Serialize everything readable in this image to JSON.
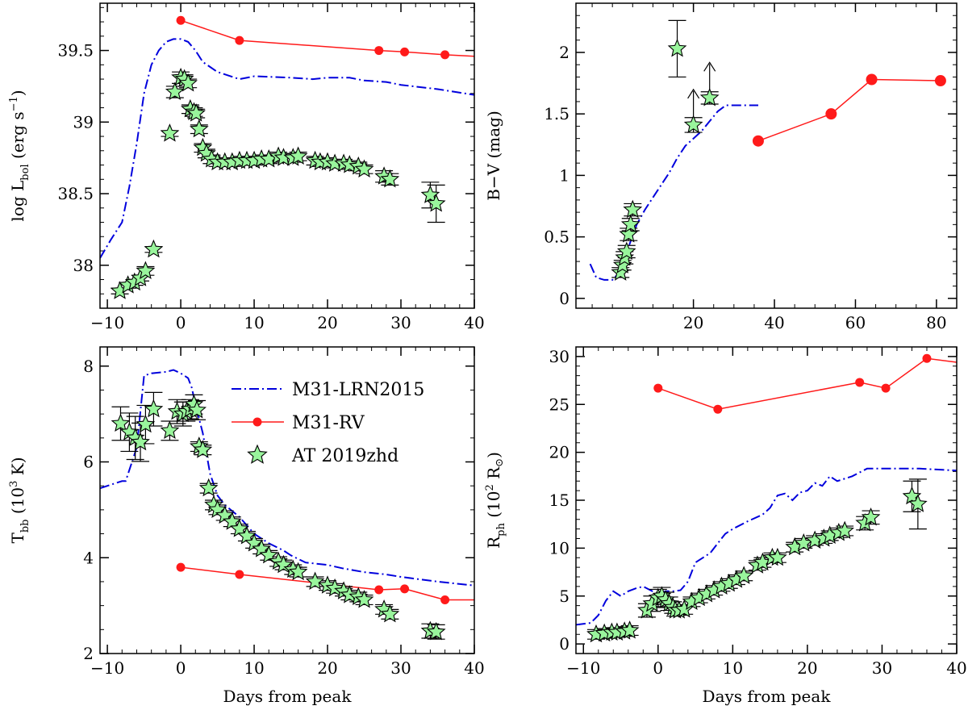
{
  "chart_data": [
    {
      "id": "lbol",
      "type": "scatter",
      "ylabel": {
        "main": "log L",
        "sub": "bol",
        "tail": " (erg s",
        "sup": "−1",
        "end": ")"
      },
      "xlim": [
        -11,
        40
      ],
      "ylim": [
        37.7,
        39.83
      ],
      "xticks": [
        -10,
        0,
        10,
        20,
        30,
        40
      ],
      "xticklabels": [
        "−10",
        "0",
        "10",
        "20",
        "30",
        "40"
      ],
      "yticks": [
        38,
        38.5,
        39,
        39.5
      ],
      "yticklabels": [
        "38",
        "38.5",
        "39",
        "39.5"
      ],
      "xminor": 2,
      "yminor": 0.1,
      "series": [
        {
          "name": "M31-LRN2015",
          "kind": "dashdot",
          "color": "#0000dd",
          "x": [
            -11,
            -9.5,
            -8,
            -7,
            -6,
            -5,
            -4,
            -3,
            -2,
            -1,
            0,
            1,
            2,
            3,
            5,
            8,
            10,
            15,
            18,
            20,
            23,
            25,
            28,
            30,
            35,
            40
          ],
          "y": [
            38.05,
            38.18,
            38.3,
            38.55,
            38.85,
            39.2,
            39.4,
            39.5,
            39.56,
            39.58,
            39.58,
            39.56,
            39.5,
            39.42,
            39.35,
            39.3,
            39.32,
            39.31,
            39.3,
            39.31,
            39.31,
            39.29,
            39.28,
            39.26,
            39.23,
            39.19
          ]
        },
        {
          "name": "M31-RV",
          "kind": "line-dot",
          "color": "#ff1a1a",
          "x": [
            0,
            8,
            27,
            30.5,
            36,
            40
          ],
          "y": [
            39.71,
            39.57,
            39.5,
            39.49,
            39.47,
            39.46
          ],
          "dots": [
            true,
            true,
            true,
            true,
            true,
            false
          ]
        },
        {
          "name": "AT 2019zhd",
          "kind": "star",
          "color": "#99f59c",
          "x": [
            -8.3,
            -7.2,
            -6.3,
            -5.5,
            -4.8,
            -3.7,
            -1.5,
            -0.8,
            0,
            0.5,
            1,
            1.3,
            1.8,
            2.1,
            2.5,
            3,
            3.5,
            4.2,
            5,
            6,
            7,
            8,
            9,
            10,
            11,
            12,
            13.3,
            14,
            15.3,
            16,
            18.3,
            19,
            20,
            21,
            22.2,
            23,
            24.2,
            25,
            27.7,
            28.5,
            34,
            34.8
          ],
          "y": [
            37.82,
            37.86,
            37.88,
            37.91,
            37.96,
            38.11,
            38.92,
            39.21,
            39.31,
            39.3,
            39.27,
            39.09,
            39.07,
            39.06,
            38.95,
            38.82,
            38.78,
            38.74,
            38.72,
            38.72,
            38.72,
            38.73,
            38.73,
            38.73,
            38.74,
            38.74,
            38.76,
            38.75,
            38.75,
            38.76,
            38.73,
            38.72,
            38.72,
            38.71,
            38.71,
            38.7,
            38.69,
            38.67,
            38.62,
            38.6,
            38.49,
            38.43
          ],
          "err": [
            0.02,
            0.02,
            0.02,
            0.02,
            0.03,
            0.02,
            0.02,
            0.04,
            0.04,
            0.03,
            0.03,
            0.03,
            0.03,
            0.03,
            0.03,
            0.03,
            0.03,
            0.03,
            0.03,
            0.03,
            0.03,
            0.03,
            0.03,
            0.03,
            0.03,
            0.03,
            0.03,
            0.03,
            0.03,
            0.03,
            0.03,
            0.03,
            0.03,
            0.03,
            0.03,
            0.03,
            0.03,
            0.03,
            0.04,
            0.04,
            0.09,
            0.13
          ]
        }
      ]
    },
    {
      "id": "bv",
      "type": "scatter",
      "ylabel": {
        "main": "B−V (mag)"
      },
      "xlim": [
        -9,
        85
      ],
      "ylim": [
        -0.08,
        2.4
      ],
      "xticks": [
        20,
        40,
        60,
        80
      ],
      "xticklabels": [
        "20",
        "40",
        "60",
        "80"
      ],
      "yticks": [
        0,
        0.5,
        1,
        1.5,
        2
      ],
      "yticklabels": [
        "0",
        "0.5",
        "1",
        "1.5",
        "2"
      ],
      "xminor": 5,
      "yminor": 0.1,
      "series": [
        {
          "name": "M31-LRN2015",
          "kind": "dashdot",
          "color": "#0000dd",
          "x": [
            -5.5,
            -4,
            -2,
            0,
            2,
            4,
            6,
            8,
            10,
            12,
            14,
            16,
            18,
            20,
            22,
            24,
            26,
            28,
            31,
            36
          ],
          "y": [
            0.28,
            0.17,
            0.15,
            0.15,
            0.22,
            0.42,
            0.6,
            0.72,
            0.82,
            0.92,
            1.02,
            1.14,
            1.24,
            1.3,
            1.36,
            1.44,
            1.52,
            1.57,
            1.57,
            1.57
          ]
        },
        {
          "name": "M31-RV",
          "kind": "line-dot",
          "color": "#ff1a1a",
          "x": [
            36,
            54,
            64,
            81
          ],
          "y": [
            1.28,
            1.5,
            1.78,
            1.77
          ],
          "dots": [
            true,
            true,
            true,
            true
          ]
        },
        {
          "name": "AT 2019zhd",
          "kind": "star",
          "color": "#99f59c",
          "x": [
            2,
            2.5,
            3,
            3.5,
            4,
            4.5,
            5,
            16,
            20,
            24
          ],
          "y": [
            0.21,
            0.27,
            0.33,
            0.38,
            0.52,
            0.6,
            0.72,
            2.03,
            1.41,
            1.63
          ],
          "err": [
            0.04,
            0.04,
            0.05,
            0.05,
            0.05,
            0.05,
            0.05,
            0.23,
            0.06,
            0.05
          ],
          "lowerlimit": [
            false,
            false,
            false,
            false,
            false,
            false,
            false,
            false,
            true,
            true
          ]
        }
      ]
    },
    {
      "id": "tbb",
      "type": "scatter",
      "ylabel": {
        "main": "T",
        "sub": "bb",
        "tail": " (10",
        "sup": "3",
        "end": " K)"
      },
      "xlim": [
        -11,
        40
      ],
      "ylim": [
        2,
        8.4
      ],
      "xticks": [
        -10,
        0,
        10,
        20,
        30,
        40
      ],
      "xticklabels": [
        "−10",
        "0",
        "10",
        "20",
        "30",
        "40"
      ],
      "yticks": [
        2,
        4,
        6,
        8
      ],
      "yticklabels": [
        "2",
        "4",
        "6",
        "8"
      ],
      "xminor": 2,
      "yminor": 0.5,
      "xlabel": "Days from peak",
      "legend": true,
      "series": [
        {
          "name": "M31-LRN2015",
          "kind": "dashdot",
          "color": "#0000dd",
          "x": [
            -11,
            -9,
            -8,
            -7.5,
            -6,
            -5,
            -4,
            -2,
            -1,
            0,
            1,
            1.5,
            2,
            3,
            4,
            5,
            6,
            8,
            10,
            12,
            14,
            15,
            17,
            20,
            22,
            25,
            28,
            30,
            35,
            40
          ],
          "y": [
            5.45,
            5.55,
            5.6,
            5.6,
            6.3,
            7.8,
            7.85,
            7.88,
            7.92,
            7.85,
            7.75,
            7.55,
            7.2,
            6.6,
            5.75,
            5.3,
            5.1,
            4.85,
            4.5,
            4.3,
            4.15,
            4.05,
            3.9,
            3.85,
            3.78,
            3.7,
            3.65,
            3.6,
            3.5,
            3.42
          ]
        },
        {
          "name": "M31-RV",
          "kind": "line-dot",
          "color": "#ff1a1a",
          "x": [
            0,
            8,
            27,
            30.5,
            36,
            40
          ],
          "y": [
            3.8,
            3.65,
            3.33,
            3.35,
            3.12,
            3.12
          ],
          "dots": [
            true,
            true,
            true,
            true,
            true,
            false
          ]
        },
        {
          "name": "AT 2019zhd",
          "kind": "star",
          "color": "#99f59c",
          "x": [
            -8.2,
            -7.0,
            -6.2,
            -5.5,
            -4.8,
            -3.7,
            -1.5,
            -0.5,
            0.3,
            0.8,
            1.3,
            1.8,
            2.2,
            2.5,
            3,
            3.8,
            4.5,
            5,
            6,
            7,
            8,
            9,
            10,
            11,
            12,
            13.3,
            14,
            15.3,
            16,
            18.3,
            20,
            21,
            22.2,
            23,
            24.2,
            25,
            27.7,
            28.5,
            34,
            34.8
          ],
          "y": [
            6.8,
            6.62,
            6.5,
            6.41,
            6.78,
            7.1,
            6.65,
            7.05,
            7.0,
            7.05,
            7.1,
            7.2,
            7.08,
            6.32,
            6.25,
            5.45,
            5.1,
            5.0,
            4.88,
            4.75,
            4.6,
            4.45,
            4.3,
            4.18,
            4.05,
            3.92,
            3.85,
            3.75,
            3.7,
            3.5,
            3.42,
            3.36,
            3.3,
            3.22,
            3.18,
            3.12,
            2.92,
            2.82,
            2.47,
            2.45
          ],
          "err": [
            0.35,
            0.4,
            0.45,
            0.4,
            0.4,
            0.35,
            0.2,
            0.25,
            0.25,
            0.2,
            0.2,
            0.2,
            0.2,
            0.1,
            0.1,
            0.1,
            0.1,
            0.1,
            0.1,
            0.1,
            0.1,
            0.1,
            0.1,
            0.1,
            0.1,
            0.1,
            0.1,
            0.1,
            0.1,
            0.1,
            0.1,
            0.1,
            0.1,
            0.1,
            0.1,
            0.1,
            0.1,
            0.1,
            0.15,
            0.15
          ]
        }
      ]
    },
    {
      "id": "rph",
      "type": "scatter",
      "ylabel": {
        "main": "R",
        "sub": "ph",
        "tail": " (10",
        "sup": "2",
        "end": " R",
        "sym": "⊙",
        "end2": ")"
      },
      "xlim": [
        -11,
        40
      ],
      "ylim": [
        -1,
        31
      ],
      "xticks": [
        -10,
        0,
        10,
        20,
        30,
        40
      ],
      "xticklabels": [
        "−10",
        "0",
        "10",
        "20",
        "30",
        "40"
      ],
      "yticks": [
        0,
        5,
        10,
        15,
        20,
        25,
        30
      ],
      "yticklabels": [
        "0",
        "5",
        "10",
        "15",
        "20",
        "25",
        "30"
      ],
      "xminor": 2,
      "yminor": 1,
      "xlabel": "Days from peak",
      "series": [
        {
          "name": "M31-LRN2015",
          "kind": "dashdot",
          "color": "#0000dd",
          "x": [
            -11,
            -9,
            -8,
            -7,
            -6,
            -5,
            -4,
            -3,
            -2,
            -1,
            0,
            1,
            2,
            3,
            4,
            5,
            6,
            7,
            8,
            9,
            10,
            12,
            14,
            15,
            16,
            17,
            18,
            19,
            20,
            21,
            22,
            23,
            24,
            26,
            28,
            30,
            35,
            40
          ],
          "y": [
            2,
            2.2,
            3,
            4.5,
            5.5,
            5,
            5.5,
            5.8,
            6,
            5.6,
            5.2,
            5.5,
            5.5,
            5.6,
            6.5,
            8.5,
            9,
            9.5,
            10.5,
            11.5,
            12,
            12.8,
            13.5,
            14.2,
            15.5,
            15.7,
            15,
            15.8,
            16,
            16.8,
            16.5,
            17.5,
            17,
            17.5,
            18.3,
            18.3,
            18.3,
            18.1
          ]
        },
        {
          "name": "M31-RV",
          "kind": "line-dot",
          "color": "#ff1a1a",
          "x": [
            0,
            8,
            27,
            30.5,
            36,
            40
          ],
          "y": [
            26.7,
            24.5,
            27.3,
            26.7,
            29.8,
            29.4
          ],
          "dots": [
            true,
            true,
            true,
            true,
            true,
            false
          ]
        },
        {
          "name": "AT 2019zhd",
          "kind": "star",
          "color": "#99f59c",
          "x": [
            -8.3,
            -7.2,
            -6.2,
            -5.5,
            -4.5,
            -3.8,
            -1.5,
            -0.8,
            0,
            0.5,
            1,
            1.5,
            2,
            2.3,
            2.8,
            3.5,
            4.5,
            5.5,
            6.5,
            7.5,
            8.5,
            9.5,
            10.5,
            11.5,
            13.3,
            14,
            15.3,
            16,
            18.3,
            19.5,
            21,
            22.2,
            23,
            24.2,
            25,
            27.7,
            28.5,
            34,
            34.8
          ],
          "y": [
            1,
            1.1,
            1.2,
            1.2,
            1.3,
            1.4,
            3.5,
            4.2,
            4.8,
            5,
            4.6,
            4.2,
            3.8,
            3.5,
            3.5,
            3.6,
            4.4,
            4.8,
            5.2,
            5.6,
            6.0,
            6.3,
            6.7,
            7.1,
            8.2,
            8.5,
            9.0,
            9.0,
            10.1,
            10.5,
            10.8,
            11.0,
            11.3,
            11.6,
            11.8,
            12.6,
            13.2,
            15.4,
            14.6
          ],
          "err": [
            0.5,
            0.5,
            0.5,
            0.5,
            0.5,
            0.5,
            0.7,
            0.8,
            0.9,
            0.9,
            0.8,
            0.7,
            0.6,
            0.6,
            0.5,
            0.5,
            0.5,
            0.5,
            0.5,
            0.5,
            0.5,
            0.5,
            0.5,
            0.5,
            0.5,
            0.5,
            0.5,
            0.5,
            0.5,
            0.5,
            0.5,
            0.5,
            0.5,
            0.5,
            0.5,
            0.7,
            0.7,
            1.6,
            2.6
          ]
        }
      ]
    }
  ],
  "legend": {
    "items": [
      {
        "label": "M31-LRN2015",
        "kind": "dashdot",
        "color": "#0000dd"
      },
      {
        "label": "M31-RV",
        "kind": "line-dot",
        "color": "#ff1a1a"
      },
      {
        "label": "AT 2019zhd",
        "kind": "star",
        "color": "#99f59c"
      }
    ]
  }
}
